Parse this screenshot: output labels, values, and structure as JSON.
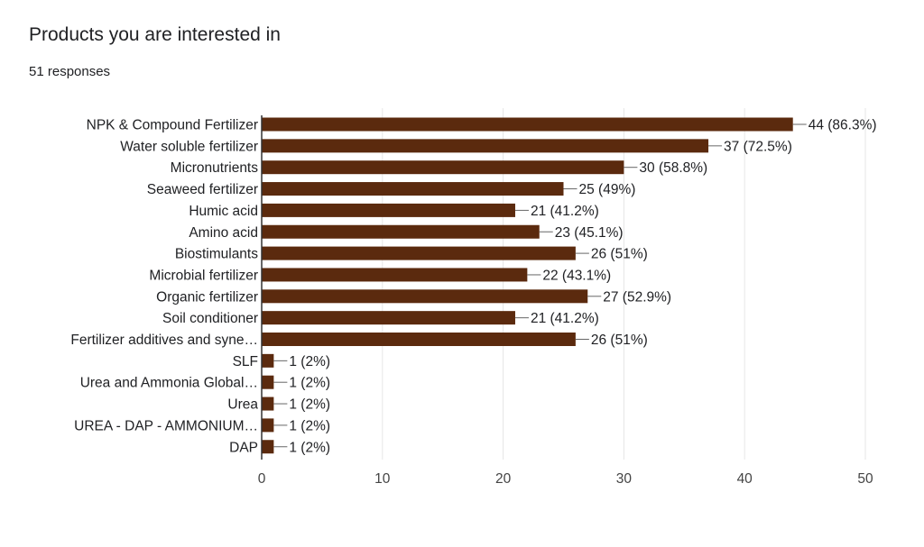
{
  "title": "Products you are interested in",
  "subtitle": "51 responses",
  "colors": {
    "bar": "#5b2a0e",
    "grid": "#e6e6e6",
    "axis": "#333333",
    "text": "#202124"
  },
  "chart_data": {
    "type": "bar",
    "orientation": "horizontal",
    "categories": [
      "NPK & Compound Fertilizer",
      "Water soluble fertilizer",
      "Micronutrients",
      "Seaweed fertilizer",
      "Humic acid",
      "Amino acid",
      "Biostimulants",
      "Microbial fertilizer",
      "Organic fertilizer",
      "Soil conditioner",
      "Fertilizer additives and syne…",
      "SLF",
      "Urea and Ammonia Global…",
      "Urea",
      "UREA - DAP - AMMONIUM…",
      "DAP"
    ],
    "values": [
      44,
      37,
      30,
      25,
      21,
      23,
      26,
      22,
      27,
      21,
      26,
      1,
      1,
      1,
      1,
      1
    ],
    "value_labels": [
      "44 (86.3%)",
      "37 (72.5%)",
      "30 (58.8%)",
      "25 (49%)",
      "21 (41.2%)",
      "23 (45.1%)",
      "26 (51%)",
      "22 (43.1%)",
      "27 (52.9%)",
      "21 (41.2%)",
      "26 (51%)",
      "1 (2%)",
      "1 (2%)",
      "1 (2%)",
      "1 (2%)",
      "1 (2%)"
    ],
    "xlim": [
      0,
      50
    ],
    "xticks": [
      0,
      10,
      20,
      30,
      40,
      50
    ],
    "grid": true
  }
}
